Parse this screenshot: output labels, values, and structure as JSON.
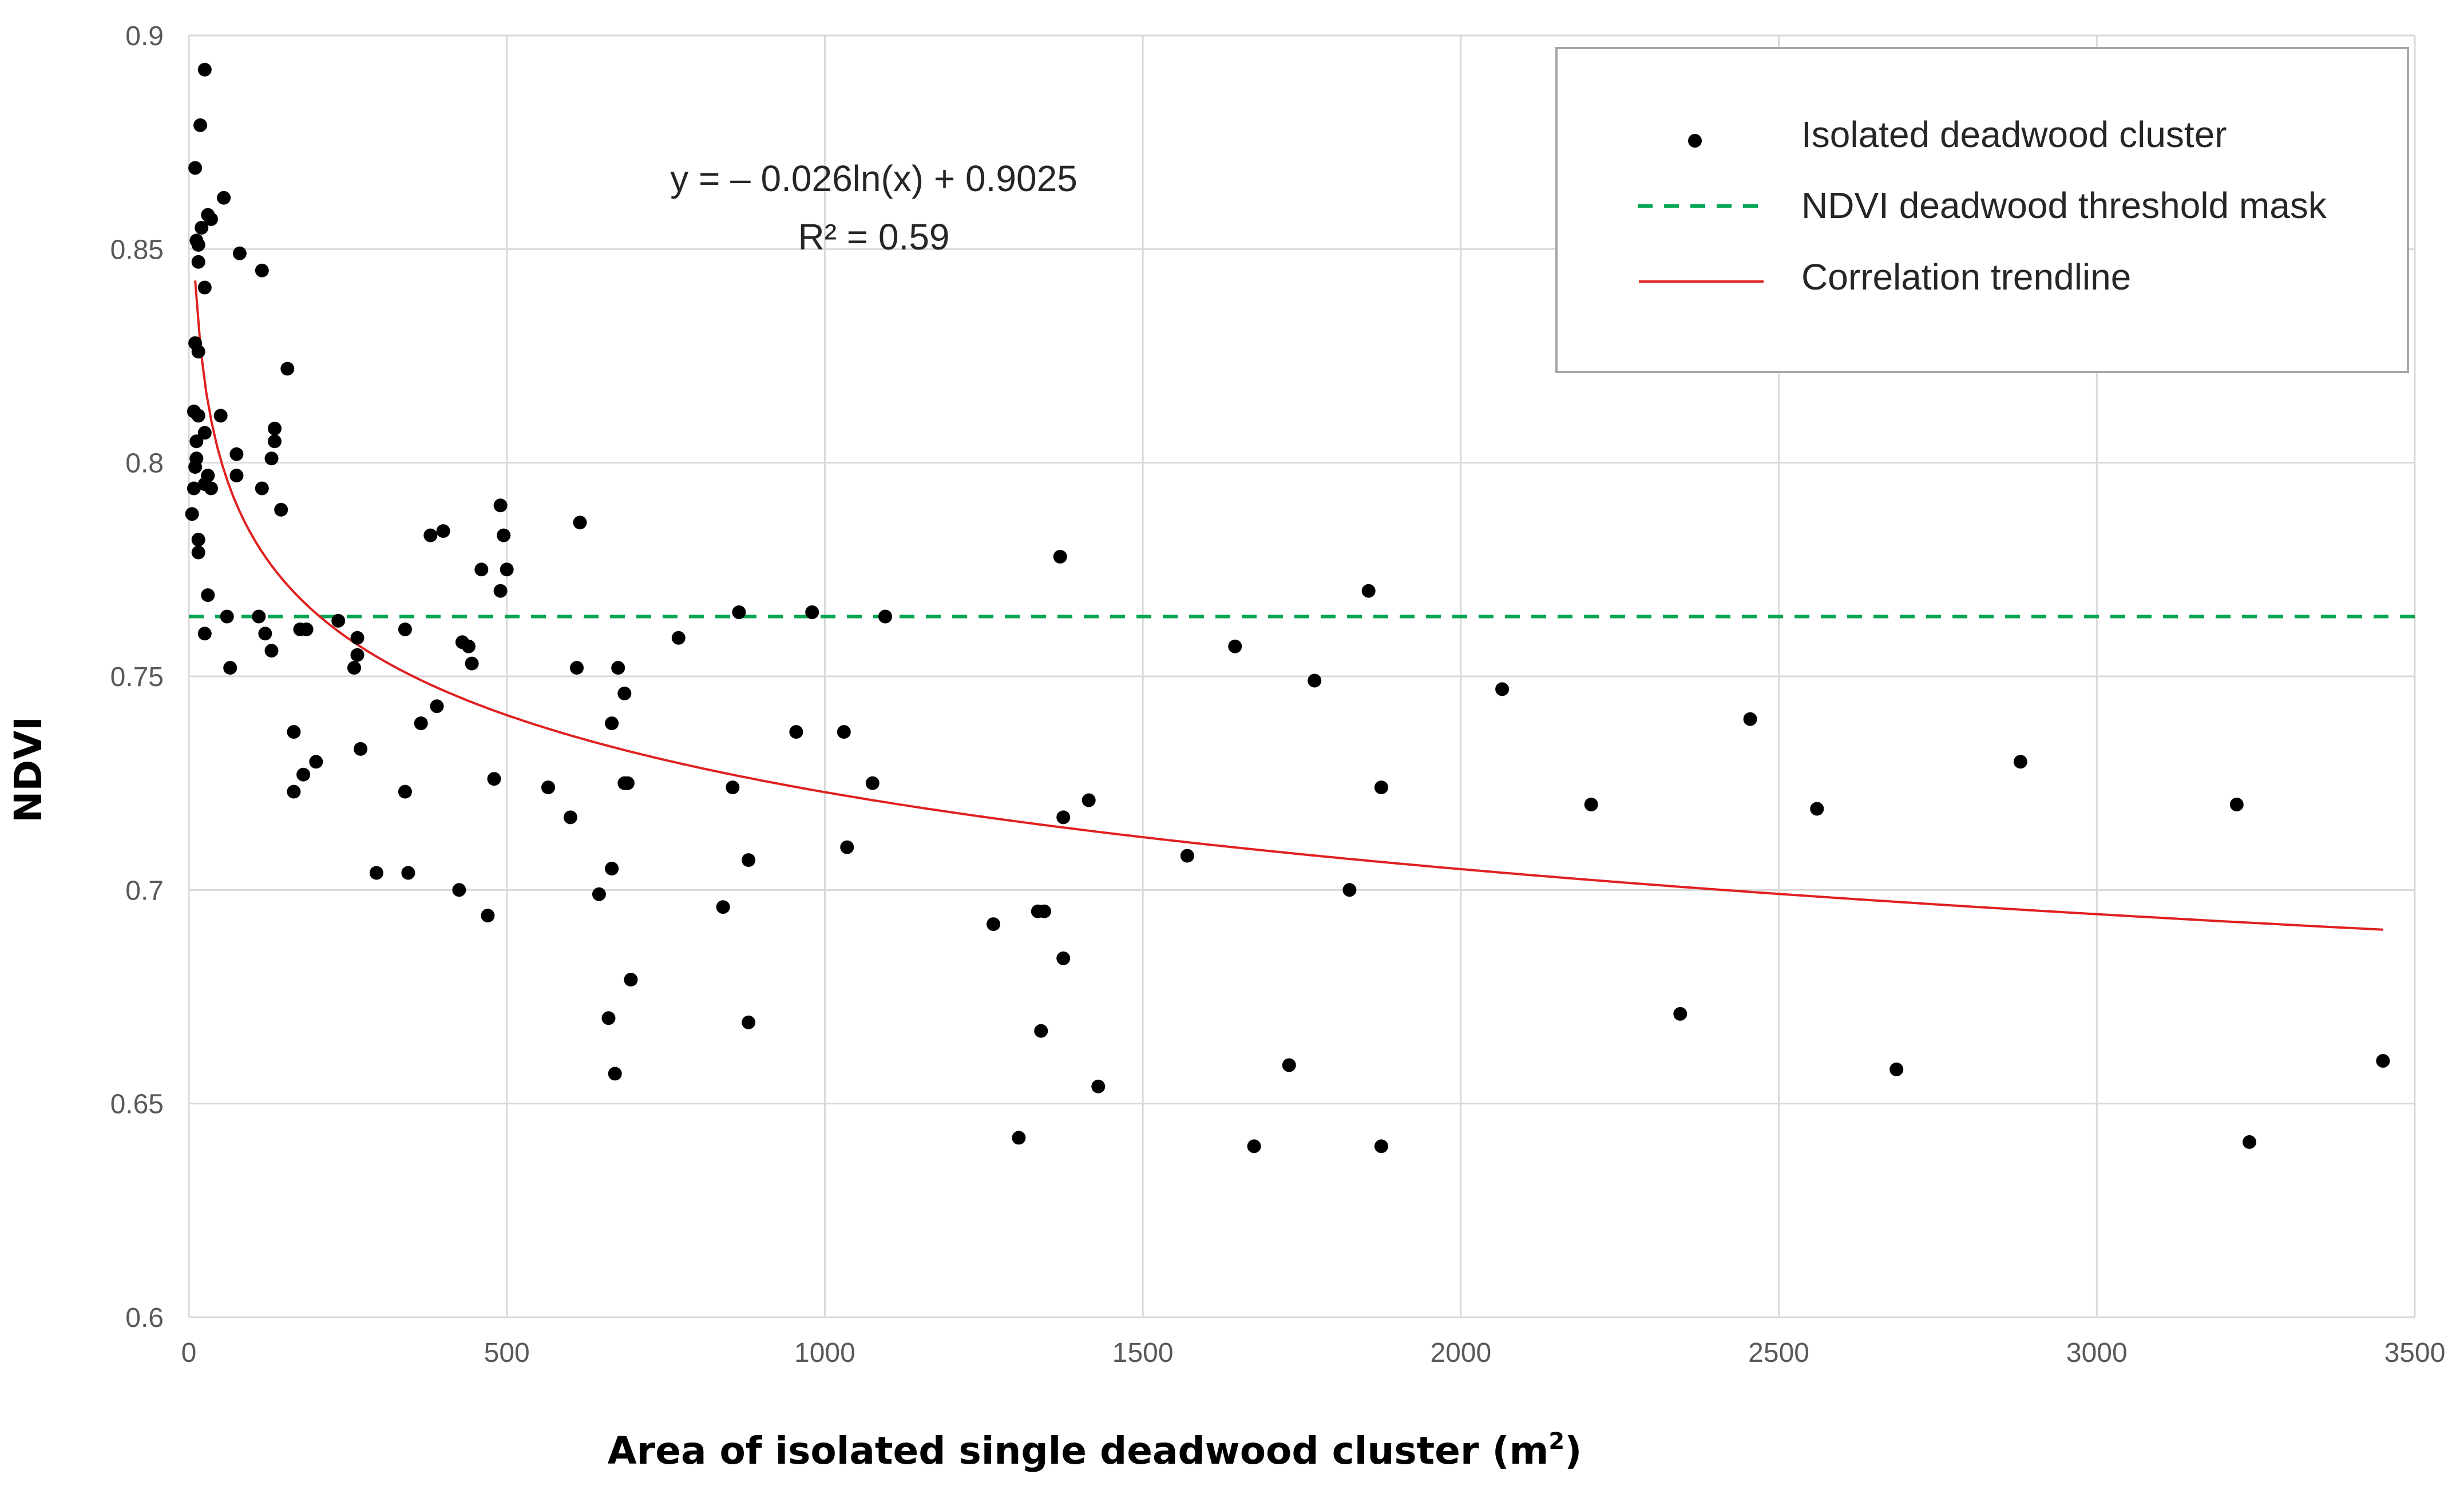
{
  "chart_data": {
    "type": "scatter",
    "title": "",
    "xlabel": "Area of isolated single deadwood cluster (m",
    "xlabel_sup": "2",
    "xlabel_end": ")",
    "ylabel": "NDVI",
    "xlim": [
      0,
      3500
    ],
    "ylim": [
      0.6,
      0.9
    ],
    "x_ticks": [
      0,
      500,
      1000,
      1500,
      2000,
      2500,
      3000,
      3500
    ],
    "y_ticks": [
      0.6,
      0.65,
      0.7,
      0.75,
      0.8,
      0.85,
      0.9
    ],
    "x_tick_labels": [
      "0",
      "500",
      "1000",
      "1500",
      "2000",
      "2500",
      "3000",
      "3500"
    ],
    "y_tick_labels": [
      "0.6",
      "0.65",
      "0.7",
      "0.75",
      "0.8",
      "0.85",
      "0.9"
    ],
    "grid": true,
    "legend_position": "top-right",
    "colors": {
      "points": "#000000",
      "threshold": "#00a651",
      "trendline": "#e02020",
      "grid": "#d9d9d9",
      "frame": "#a6a6a6"
    },
    "annotation": {
      "equation": "y = – 0.026ln(x) + 0.9025",
      "r_squared": "R² = 0.59"
    },
    "legend": [
      {
        "key": "points",
        "label": "Isolated deadwood cluster"
      },
      {
        "key": "threshold",
        "label": "NDVI deadwood threshold mask"
      },
      {
        "key": "trendline",
        "label": "Correlation trendline"
      }
    ],
    "threshold": {
      "name": "NDVI deadwood threshold mask",
      "y": 0.764,
      "x_range": [
        0,
        3500
      ]
    },
    "trendline": {
      "name": "Correlation trendline",
      "a": -0.026,
      "b": 0.9025,
      "x_range": [
        10,
        3450
      ]
    },
    "series": [
      {
        "name": "Isolated deadwood cluster",
        "points": [
          [
            25,
            0.892
          ],
          [
            18,
            0.879
          ],
          [
            10,
            0.869
          ],
          [
            55,
            0.862
          ],
          [
            30,
            0.858
          ],
          [
            35,
            0.857
          ],
          [
            20,
            0.855
          ],
          [
            12,
            0.852
          ],
          [
            15,
            0.851
          ],
          [
            80,
            0.849
          ],
          [
            15,
            0.847
          ],
          [
            115,
            0.845
          ],
          [
            25,
            0.841
          ],
          [
            10,
            0.828
          ],
          [
            15,
            0.826
          ],
          [
            155,
            0.822
          ],
          [
            8,
            0.812
          ],
          [
            15,
            0.811
          ],
          [
            50,
            0.811
          ],
          [
            135,
            0.808
          ],
          [
            25,
            0.807
          ],
          [
            135,
            0.805
          ],
          [
            12,
            0.805
          ],
          [
            75,
            0.802
          ],
          [
            12,
            0.801
          ],
          [
            130,
            0.801
          ],
          [
            10,
            0.799
          ],
          [
            30,
            0.797
          ],
          [
            75,
            0.797
          ],
          [
            25,
            0.795
          ],
          [
            8,
            0.794
          ],
          [
            35,
            0.794
          ],
          [
            115,
            0.794
          ],
          [
            145,
            0.789
          ],
          [
            5,
            0.788
          ],
          [
            490,
            0.79
          ],
          [
            615,
            0.786
          ],
          [
            400,
            0.784
          ],
          [
            380,
            0.783
          ],
          [
            495,
            0.783
          ],
          [
            15,
            0.782
          ],
          [
            15,
            0.779
          ],
          [
            1370,
            0.778
          ],
          [
            460,
            0.775
          ],
          [
            500,
            0.775
          ],
          [
            490,
            0.77
          ],
          [
            1855,
            0.77
          ],
          [
            30,
            0.769
          ],
          [
            980,
            0.765
          ],
          [
            60,
            0.764
          ],
          [
            110,
            0.764
          ],
          [
            865,
            0.765
          ],
          [
            1095,
            0.764
          ],
          [
            235,
            0.763
          ],
          [
            340,
            0.761
          ],
          [
            25,
            0.76
          ],
          [
            120,
            0.76
          ],
          [
            175,
            0.761
          ],
          [
            185,
            0.761
          ],
          [
            770,
            0.759
          ],
          [
            265,
            0.759
          ],
          [
            430,
            0.758
          ],
          [
            440,
            0.757
          ],
          [
            1645,
            0.757
          ],
          [
            130,
            0.756
          ],
          [
            265,
            0.755
          ],
          [
            445,
            0.753
          ],
          [
            260,
            0.752
          ],
          [
            65,
            0.752
          ],
          [
            610,
            0.752
          ],
          [
            675,
            0.752
          ],
          [
            1770,
            0.749
          ],
          [
            2065,
            0.747
          ],
          [
            685,
            0.746
          ],
          [
            390,
            0.743
          ],
          [
            2455,
            0.74
          ],
          [
            665,
            0.739
          ],
          [
            365,
            0.739
          ],
          [
            1030,
            0.737
          ],
          [
            955,
            0.737
          ],
          [
            165,
            0.737
          ],
          [
            270,
            0.733
          ],
          [
            2880,
            0.73
          ],
          [
            200,
            0.73
          ],
          [
            180,
            0.727
          ],
          [
            480,
            0.726
          ],
          [
            690,
            0.725
          ],
          [
            685,
            0.725
          ],
          [
            1075,
            0.725
          ],
          [
            565,
            0.724
          ],
          [
            855,
            0.724
          ],
          [
            1875,
            0.724
          ],
          [
            165,
            0.723
          ],
          [
            340,
            0.723
          ],
          [
            1415,
            0.721
          ],
          [
            2205,
            0.72
          ],
          [
            3220,
            0.72
          ],
          [
            2560,
            0.719
          ],
          [
            1375,
            0.717
          ],
          [
            600,
            0.717
          ],
          [
            1035,
            0.71
          ],
          [
            1570,
            0.708
          ],
          [
            880,
            0.707
          ],
          [
            665,
            0.705
          ],
          [
            295,
            0.704
          ],
          [
            345,
            0.704
          ],
          [
            425,
            0.7
          ],
          [
            1825,
            0.7
          ],
          [
            645,
            0.699
          ],
          [
            840,
            0.696
          ],
          [
            1335,
            0.695
          ],
          [
            1345,
            0.695
          ],
          [
            470,
            0.694
          ],
          [
            1265,
            0.692
          ],
          [
            1375,
            0.684
          ],
          [
            695,
            0.679
          ],
          [
            2345,
            0.671
          ],
          [
            660,
            0.67
          ],
          [
            880,
            0.669
          ],
          [
            1340,
            0.667
          ],
          [
            3450,
            0.66
          ],
          [
            1730,
            0.659
          ],
          [
            2685,
            0.658
          ],
          [
            670,
            0.657
          ],
          [
            1430,
            0.654
          ],
          [
            1305,
            0.642
          ],
          [
            3240,
            0.641
          ],
          [
            1675,
            0.64
          ],
          [
            1875,
            0.64
          ]
        ]
      }
    ]
  }
}
